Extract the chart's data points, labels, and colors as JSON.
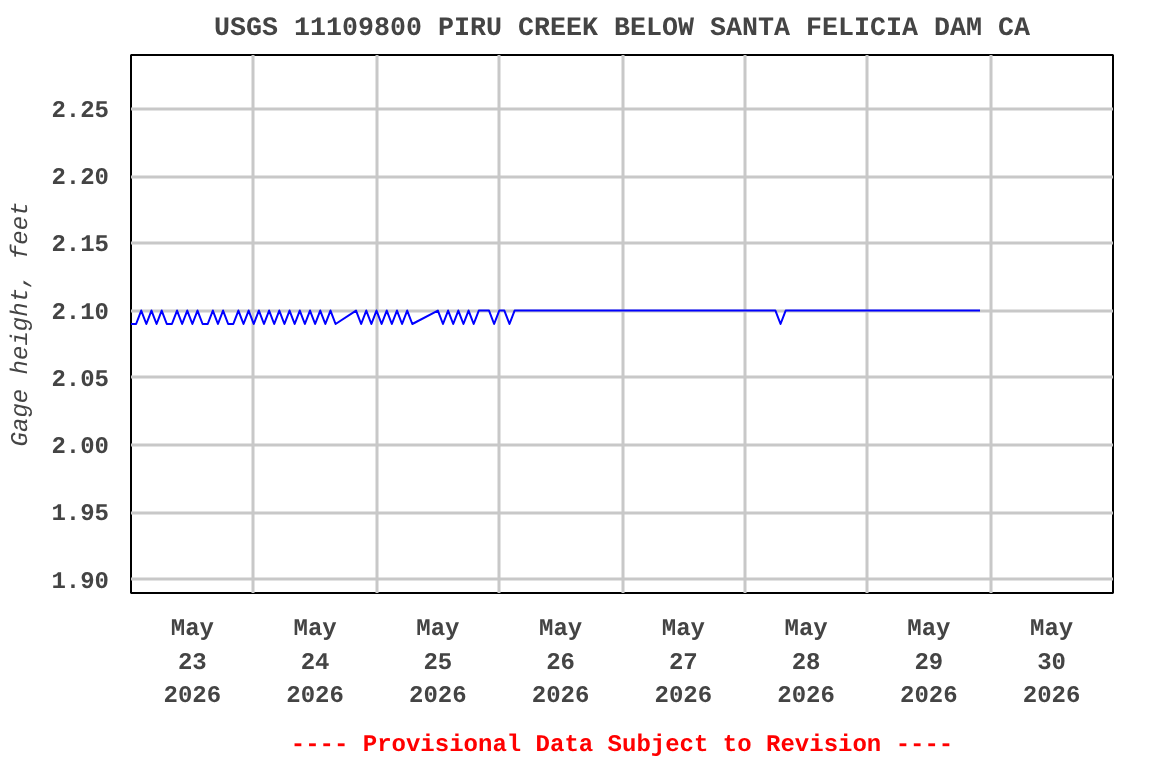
{
  "chart_data": {
    "type": "line",
    "title": "USGS 11109800 PIRU CREEK BELOW SANTA FELICIA DAM CA",
    "ylabel": "Gage height, feet",
    "annotations": [
      "---- Provisional Data Subject to Revision ----"
    ],
    "x": [
      "2026-05-23T00:00",
      "2026-05-23T01:00",
      "2026-05-23T02:00",
      "2026-05-23T03:00",
      "2026-05-23T04:00",
      "2026-05-23T05:00",
      "2026-05-23T06:00",
      "2026-05-23T07:00",
      "2026-05-23T08:00",
      "2026-05-23T09:00",
      "2026-05-23T10:00",
      "2026-05-23T11:00",
      "2026-05-23T12:00",
      "2026-05-23T13:00",
      "2026-05-23T14:00",
      "2026-05-23T15:00",
      "2026-05-23T16:00",
      "2026-05-23T17:00",
      "2026-05-23T18:00",
      "2026-05-23T19:00",
      "2026-05-23T20:00",
      "2026-05-23T21:00",
      "2026-05-23T22:00",
      "2026-05-23T23:00",
      "2026-05-24T00:00",
      "2026-05-24T01:00",
      "2026-05-24T02:00",
      "2026-05-24T03:00",
      "2026-05-24T04:00",
      "2026-05-24T05:00",
      "2026-05-24T06:00",
      "2026-05-24T07:00",
      "2026-05-24T08:00",
      "2026-05-24T09:00",
      "2026-05-24T10:00",
      "2026-05-24T11:00",
      "2026-05-24T12:00",
      "2026-05-24T13:00",
      "2026-05-24T14:00",
      "2026-05-24T15:00",
      "2026-05-24T16:00",
      "2026-05-24T20:00",
      "2026-05-24T21:00",
      "2026-05-24T22:00",
      "2026-05-24T23:00",
      "2026-05-25T00:00",
      "2026-05-25T01:00",
      "2026-05-25T02:00",
      "2026-05-25T03:00",
      "2026-05-25T04:00",
      "2026-05-25T05:00",
      "2026-05-25T06:00",
      "2026-05-25T07:00",
      "2026-05-25T12:00",
      "2026-05-25T13:00",
      "2026-05-25T14:00",
      "2026-05-25T15:00",
      "2026-05-25T16:00",
      "2026-05-25T17:00",
      "2026-05-25T18:00",
      "2026-05-25T19:00",
      "2026-05-25T20:00",
      "2026-05-25T22:00",
      "2026-05-25T23:00",
      "2026-05-26T00:00",
      "2026-05-26T01:00",
      "2026-05-26T02:00",
      "2026-05-26T03:00",
      "2026-05-28T06:00",
      "2026-05-28T07:00",
      "2026-05-28T08:00",
      "2026-05-29T22:00"
    ],
    "series": [
      {
        "color": "#0000ff",
        "values": [
          2.09,
          2.09,
          2.1,
          2.09,
          2.1,
          2.09,
          2.1,
          2.09,
          2.09,
          2.1,
          2.09,
          2.1,
          2.09,
          2.1,
          2.09,
          2.09,
          2.1,
          2.09,
          2.1,
          2.09,
          2.09,
          2.1,
          2.09,
          2.1,
          2.09,
          2.1,
          2.09,
          2.1,
          2.09,
          2.1,
          2.09,
          2.1,
          2.09,
          2.1,
          2.09,
          2.1,
          2.09,
          2.1,
          2.09,
          2.1,
          2.09,
          2.1,
          2.09,
          2.1,
          2.09,
          2.1,
          2.09,
          2.1,
          2.09,
          2.1,
          2.09,
          2.1,
          2.09,
          2.1,
          2.09,
          2.1,
          2.09,
          2.1,
          2.09,
          2.1,
          2.09,
          2.1,
          2.1,
          2.09,
          2.1,
          2.1,
          2.09,
          2.1,
          2.1,
          2.09,
          2.1,
          2.1
        ]
      }
    ],
    "xlim": [
      "2026-05-23T00:00",
      "2026-05-31T00:00"
    ],
    "xticks": [
      {
        "value": "2026-05-23T00:00",
        "label": null
      },
      {
        "value": "2026-05-23T12:00",
        "label": "May\n23\n2026"
      },
      {
        "value": "2026-05-24T00:00",
        "label": null
      },
      {
        "value": "2026-05-24T12:00",
        "label": "May\n24\n2026"
      },
      {
        "value": "2026-05-25T00:00",
        "label": null
      },
      {
        "value": "2026-05-25T12:00",
        "label": "May\n25\n2026"
      },
      {
        "value": "2026-05-26T00:00",
        "label": null
      },
      {
        "value": "2026-05-26T12:00",
        "label": "May\n26\n2026"
      },
      {
        "value": "2026-05-27T00:00",
        "label": null
      },
      {
        "value": "2026-05-27T12:00",
        "label": "May\n27\n2026"
      },
      {
        "value": "2026-05-28T00:00",
        "label": null
      },
      {
        "value": "2026-05-28T12:00",
        "label": "May\n28\n2026"
      },
      {
        "value": "2026-05-29T00:00",
        "label": null
      },
      {
        "value": "2026-05-29T12:00",
        "label": "May\n29\n2026"
      },
      {
        "value": "2026-05-30T00:00",
        "label": null
      },
      {
        "value": "2026-05-30T12:00",
        "label": "May\n30\n2026"
      },
      {
        "value": "2026-05-31T00:00",
        "label": null
      }
    ],
    "ylim": [
      1.89,
      2.29
    ],
    "yticks": [
      {
        "value": 1.9,
        "label": "1.90"
      },
      {
        "value": 1.95,
        "label": "1.95"
      },
      {
        "value": 2.0,
        "label": "2.00"
      },
      {
        "value": 2.05,
        "label": "2.05"
      },
      {
        "value": 2.1,
        "label": "2.10"
      },
      {
        "value": 2.15,
        "label": "2.15"
      },
      {
        "value": 2.2,
        "label": "2.20"
      },
      {
        "value": 2.25,
        "label": "2.25"
      }
    ],
    "grid": true,
    "line_style": "solid"
  }
}
